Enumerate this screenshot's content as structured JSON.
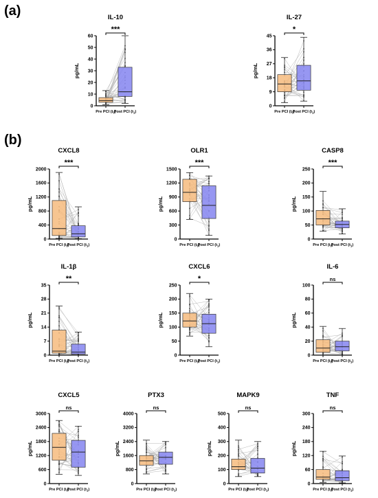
{
  "panel_labels": {
    "a": "(a)",
    "b": "(b)"
  },
  "colors": {
    "pre": "#f6bd82",
    "post": "#8989f0",
    "line": "#aaaaaa",
    "point": "#555555"
  },
  "tick_group": [
    "Pre PCI (t",
    "0",
    ")",
    "Post PCI (t",
    "1",
    ")"
  ],
  "chart_data": [
    {
      "type": "box",
      "title": "IL-10",
      "ylabel": "pg/mL",
      "ylim": [
        0,
        60
      ],
      "yticks": [
        0,
        10,
        20,
        30,
        40,
        50,
        60
      ],
      "sig": "***",
      "series": [
        {
          "name": "Pre PCI (t0)",
          "min": 1,
          "q1": 3,
          "median": 4.5,
          "q3": 7,
          "max": 13
        },
        {
          "name": "Post PCI (t1)",
          "min": 2,
          "q1": 8,
          "median": 12,
          "q3": 33,
          "max": 60
        }
      ]
    },
    {
      "type": "box",
      "title": "IL-27",
      "ylabel": "pg/mL",
      "ylim": [
        0,
        45
      ],
      "yticks": [
        0,
        9,
        18,
        27,
        36,
        45
      ],
      "sig": "*",
      "series": [
        {
          "name": "Pre PCI (t0)",
          "min": 2,
          "q1": 9,
          "median": 14,
          "q3": 20,
          "max": 31
        },
        {
          "name": "Post PCI (t1)",
          "min": 3,
          "q1": 10,
          "median": 16,
          "q3": 26,
          "max": 44
        }
      ]
    },
    {
      "type": "box",
      "title": "CXCL8",
      "ylabel": "pg/mL",
      "ylim": [
        0,
        2000
      ],
      "yticks": [
        0,
        400,
        800,
        1200,
        1600,
        2000
      ],
      "sig": "***",
      "series": [
        {
          "name": "Pre PCI (t0)",
          "min": 20,
          "q1": 100,
          "median": 300,
          "q3": 1100,
          "max": 1900
        },
        {
          "name": "Post PCI (t1)",
          "min": 10,
          "q1": 60,
          "median": 150,
          "q3": 380,
          "max": 920
        }
      ]
    },
    {
      "type": "box",
      "title": "OLR1",
      "ylabel": "pg/mL",
      "ylim": [
        0,
        1500
      ],
      "yticks": [
        0,
        300,
        600,
        900,
        1200,
        1500
      ],
      "sig": "***",
      "series": [
        {
          "name": "Pre PCI (t0)",
          "min": 420,
          "q1": 800,
          "median": 1000,
          "q3": 1280,
          "max": 1420
        },
        {
          "name": "Post PCI (t1)",
          "min": 80,
          "q1": 440,
          "median": 720,
          "q3": 1140,
          "max": 1350
        }
      ]
    },
    {
      "type": "box",
      "title": "CASP8",
      "ylabel": "pg/mL",
      "ylim": [
        0,
        250
      ],
      "yticks": [
        0,
        50,
        100,
        150,
        200,
        250
      ],
      "sig": "***",
      "series": [
        {
          "name": "Pre PCI (t0)",
          "min": 28,
          "q1": 50,
          "median": 72,
          "q3": 102,
          "max": 170
        },
        {
          "name": "Post PCI (t1)",
          "min": 18,
          "q1": 40,
          "median": 52,
          "q3": 64,
          "max": 108
        }
      ]
    },
    {
      "type": "box",
      "title": "IL-1β",
      "ylabel": "pg/mL",
      "ylim": [
        0,
        35
      ],
      "yticks": [
        0,
        7,
        14,
        21,
        28,
        35
      ],
      "sig": "**",
      "series": [
        {
          "name": "Pre PCI (t0)",
          "min": 0,
          "q1": 1,
          "median": 2,
          "q3": 12.5,
          "max": 24.5
        },
        {
          "name": "Post PCI (t1)",
          "min": 0,
          "q1": 0.5,
          "median": 1.5,
          "q3": 5.5,
          "max": 11.5
        }
      ]
    },
    {
      "type": "box",
      "title": "CXCL6",
      "ylabel": "pg/mL",
      "ylim": [
        0,
        250
      ],
      "yticks": [
        0,
        50,
        100,
        150,
        200,
        250
      ],
      "sig": "*",
      "series": [
        {
          "name": "Pre PCI (t0)",
          "min": 68,
          "q1": 100,
          "median": 122,
          "q3": 150,
          "max": 220
        },
        {
          "name": "Post PCI (t1)",
          "min": 30,
          "q1": 78,
          "median": 112,
          "q3": 146,
          "max": 200
        }
      ]
    },
    {
      "type": "box",
      "title": "IL-6",
      "ylabel": "pg/mL",
      "ylim": [
        0,
        100
      ],
      "yticks": [
        0,
        20,
        40,
        60,
        80,
        100
      ],
      "sig": "ns",
      "series": [
        {
          "name": "Pre PCI (t0)",
          "min": 0,
          "q1": 4,
          "median": 10,
          "q3": 22,
          "max": 41
        },
        {
          "name": "Post PCI (t1)",
          "min": 0,
          "q1": 6,
          "median": 12,
          "q3": 20,
          "max": 38
        }
      ]
    },
    {
      "type": "box",
      "title": "CXCL5",
      "ylabel": "pg/mL",
      "ylim": [
        0,
        3000
      ],
      "yticks": [
        0,
        600,
        1200,
        1800,
        2400,
        3000
      ],
      "sig": "ns",
      "series": [
        {
          "name": "Pre PCI (t0)",
          "min": 400,
          "q1": 1000,
          "median": 1550,
          "q3": 2150,
          "max": 2700
        },
        {
          "name": "Post PCI (t1)",
          "min": 350,
          "q1": 700,
          "median": 1350,
          "q3": 1850,
          "max": 2450
        }
      ]
    },
    {
      "type": "box",
      "title": "PTX3",
      "ylabel": "pg/mL",
      "ylim": [
        0,
        4000
      ],
      "yticks": [
        0,
        800,
        1600,
        2400,
        3200,
        4000
      ],
      "sig": "ns",
      "series": [
        {
          "name": "Pre PCI (t0)",
          "min": 550,
          "q1": 1050,
          "median": 1300,
          "q3": 1600,
          "max": 2480
        },
        {
          "name": "Post PCI (t1)",
          "min": 550,
          "q1": 1100,
          "median": 1500,
          "q3": 1800,
          "max": 2400
        }
      ]
    },
    {
      "type": "box",
      "title": "MAPK9",
      "ylabel": "pg/mL",
      "ylim": [
        0,
        500
      ],
      "yticks": [
        0,
        100,
        200,
        300,
        400,
        500
      ],
      "sig": "ns",
      "series": [
        {
          "name": "Pre PCI (t0)",
          "min": 50,
          "q1": 100,
          "median": 120,
          "q3": 175,
          "max": 310
        },
        {
          "name": "Post PCI (t1)",
          "min": 50,
          "q1": 75,
          "median": 110,
          "q3": 180,
          "max": 300
        }
      ]
    },
    {
      "type": "box",
      "title": "TNF",
      "ylabel": "pg/mL",
      "ylim": [
        0,
        300
      ],
      "yticks": [
        0,
        60,
        120,
        180,
        240,
        300
      ],
      "sig": "ns",
      "series": [
        {
          "name": "Pre PCI (t0)",
          "min": 5,
          "q1": 18,
          "median": 28,
          "q3": 60,
          "max": 138
        },
        {
          "name": "Post PCI (t1)",
          "min": 3,
          "q1": 12,
          "median": 25,
          "q3": 55,
          "max": 118
        }
      ]
    }
  ]
}
